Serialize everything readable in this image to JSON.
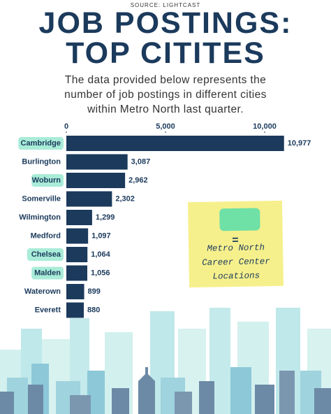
{
  "chart_data": {
    "type": "bar",
    "orientation": "horizontal",
    "source": "SOURCE: LIGHTCAST",
    "title": "JOB POSTINGS: TOP CITITES",
    "subtitle": "The data provided below represents the number of job postings in different cities within Metro North last quarter.",
    "categories": [
      "Cambridge",
      "Burlington",
      "Woburn",
      "Somerville",
      "Wilmington",
      "Medford",
      "Chelsea",
      "Malden",
      "Waterown",
      "Everett"
    ],
    "values": [
      10977,
      3087,
      2962,
      2302,
      1299,
      1097,
      1064,
      1056,
      899,
      880
    ],
    "value_labels": [
      "10,977",
      "3,087",
      "2,962",
      "2,302",
      "1,299",
      "1,097",
      "1,064",
      "1,056",
      "899",
      "880"
    ],
    "color": "#1b3a5c",
    "highlighted": [
      true,
      false,
      true,
      false,
      false,
      false,
      true,
      true,
      false,
      false
    ],
    "highlight_color": "#a9ecd8",
    "xlim": [
      0,
      11000
    ],
    "xticks": [
      0,
      {
        "value": 5000,
        "label": "5,000"
      },
      {
        "value": 10000,
        "label": "10,000"
      }
    ],
    "note": {
      "symbol": "=",
      "text": "Metro North Career Center Locations",
      "swatch_color": "#6fe0a6",
      "color": "#f6f08c"
    }
  }
}
